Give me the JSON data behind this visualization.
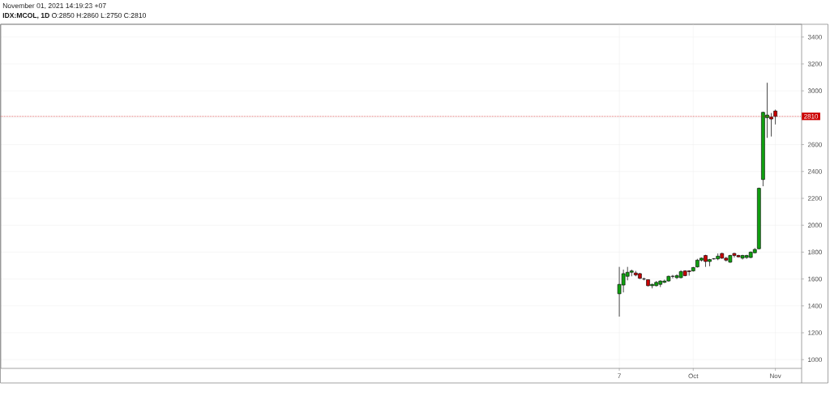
{
  "chart_data": {
    "type": "candlestick",
    "title": "**IDX:MCOL, 1D** O:2850 H:2860 L:2750 C:2810",
    "annotations": [
      "November 01, 2021 14:19:23 +07"
    ],
    "categories": [
      "7",
      null,
      null,
      null,
      null,
      null,
      null,
      null,
      null,
      null,
      null,
      null,
      null,
      null,
      null,
      null,
      null,
      null,
      "Oct",
      null,
      null,
      null,
      null,
      null,
      null,
      null,
      null,
      null,
      null,
      null,
      null,
      null,
      null,
      null,
      null,
      null,
      null,
      null,
      "Nov"
    ],
    "ohlc": [
      [
        1490,
        1690,
        1320,
        1560
      ],
      [
        1555,
        1670,
        1500,
        1640
      ],
      [
        1620,
        1690,
        1590,
        1650
      ],
      [
        1650,
        1670,
        1620,
        1660
      ],
      [
        1645,
        1660,
        1620,
        1630
      ],
      [
        1640,
        1645,
        1600,
        1605
      ],
      [
        1600,
        1610,
        1590,
        1600
      ],
      [
        1595,
        1595,
        1545,
        1550
      ],
      [
        1550,
        1565,
        1530,
        1560
      ],
      [
        1550,
        1585,
        1545,
        1575
      ],
      [
        1560,
        1590,
        1540,
        1585
      ],
      [
        1575,
        1595,
        1570,
        1585
      ],
      [
        1585,
        1625,
        1580,
        1620
      ],
      [
        1620,
        1630,
        1605,
        1620
      ],
      [
        1610,
        1635,
        1600,
        1625
      ],
      [
        1610,
        1665,
        1605,
        1655
      ],
      [
        1660,
        1665,
        1620,
        1625
      ],
      [
        1660,
        1665,
        1625,
        1655
      ],
      [
        1660,
        1690,
        1655,
        1685
      ],
      [
        1690,
        1750,
        1685,
        1740
      ],
      [
        1740,
        1760,
        1730,
        1755
      ],
      [
        1775,
        1780,
        1690,
        1730
      ],
      [
        1730,
        1750,
        1695,
        1745
      ],
      [
        1750,
        1755,
        1745,
        1750
      ],
      [
        1750,
        1790,
        1740,
        1770
      ],
      [
        1790,
        1795,
        1750,
        1755
      ],
      [
        1755,
        1765,
        1730,
        1740
      ],
      [
        1725,
        1780,
        1720,
        1775
      ],
      [
        1790,
        1795,
        1760,
        1775
      ],
      [
        1775,
        1780,
        1760,
        1765
      ],
      [
        1755,
        1780,
        1745,
        1775
      ],
      [
        1760,
        1780,
        1750,
        1775
      ],
      [
        1760,
        1805,
        1755,
        1800
      ],
      [
        1795,
        1830,
        1790,
        1820
      ],
      [
        1825,
        2280,
        1820,
        2275
      ],
      [
        2340,
        2845,
        2290,
        2840
      ],
      [
        2800,
        3060,
        2650,
        2820
      ],
      [
        2805,
        2835,
        2660,
        2790
      ],
      [
        2850,
        2860,
        2750,
        2810
      ]
    ],
    "colors": [
      "#10a010",
      "#10a010",
      "#10a010",
      "#10a010",
      "#c80000",
      "#c80000",
      "#000000",
      "#c80000",
      "#10a010",
      "#10a010",
      "#10a010",
      "#10a010",
      "#10a010",
      "#000000",
      "#10a010",
      "#10a010",
      "#c80000",
      "#c80000",
      "#10a010",
      "#10a010",
      "#10a010",
      "#c80000",
      "#10a010",
      "#000000",
      "#10a010",
      "#c80000",
      "#c80000",
      "#10a010",
      "#c80000",
      "#c80000",
      "#10a010",
      "#10a010",
      "#10a010",
      "#10a010",
      "#10a010",
      "#10a010",
      "#10a010",
      "#c80000",
      "#c80000"
    ],
    "ylim": [
      935,
      3495
    ],
    "yticks": [
      1000,
      1200,
      1400,
      1600,
      1800,
      2000,
      2200,
      2400,
      2600,
      {
        "value": 2800,
        "label": null
      },
      3000,
      3200,
      3400
    ],
    "grid": true,
    "ref_lines": [
      {
        "axis": "y",
        "value": 2810,
        "label": "2810",
        "color": "#cc0000",
        "line_style": "dotted"
      }
    ]
  }
}
